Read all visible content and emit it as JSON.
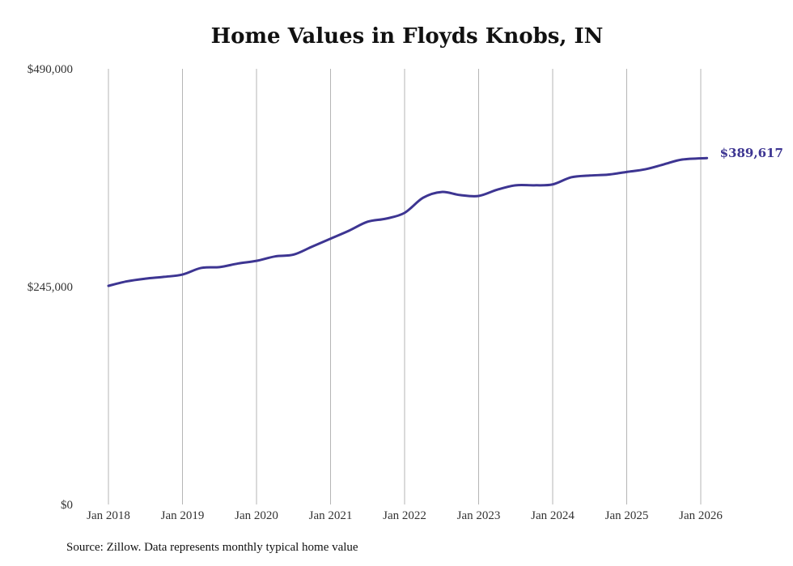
{
  "chart_data": {
    "type": "line",
    "title": "Home Values in Floyds Knobs, IN",
    "xlabel": "",
    "ylabel": "",
    "ylim": [
      0,
      490000
    ],
    "yticks": [
      0,
      245000,
      490000
    ],
    "ytick_labels": [
      "$0",
      "$245,000",
      "$490,000"
    ],
    "xticks": [
      "Jan 2018",
      "Jan 2019",
      "Jan 2020",
      "Jan 2021",
      "Jan 2022",
      "Jan 2023",
      "Jan 2024",
      "Jan 2025",
      "Jan 2026"
    ],
    "grid": "vertical",
    "line_color": "#3d3592",
    "series": [
      {
        "name": "Typical home value",
        "x": [
          "2018-01",
          "2018-04",
          "2018-07",
          "2018-10",
          "2019-01",
          "2019-04",
          "2019-07",
          "2019-10",
          "2020-01",
          "2020-04",
          "2020-07",
          "2020-10",
          "2021-01",
          "2021-04",
          "2021-07",
          "2021-10",
          "2022-01",
          "2022-04",
          "2022-07",
          "2022-10",
          "2023-01",
          "2023-04",
          "2023-07",
          "2023-10",
          "2024-01",
          "2024-04",
          "2024-07",
          "2024-10",
          "2025-01",
          "2025-04",
          "2025-07",
          "2025-10",
          "2026-02"
        ],
        "values": [
          245900,
          251000,
          254000,
          256000,
          258600,
          266000,
          267000,
          271000,
          274000,
          279000,
          281000,
          290000,
          299000,
          308000,
          318000,
          321500,
          328000,
          345000,
          351500,
          348000,
          347000,
          354000,
          359000,
          359000,
          360000,
          368000,
          370000,
          371000,
          374000,
          377000,
          382500,
          388000,
          389617
        ]
      }
    ],
    "end_label": "$389,617"
  },
  "source": "Source: Zillow. Data represents monthly typical home value"
}
